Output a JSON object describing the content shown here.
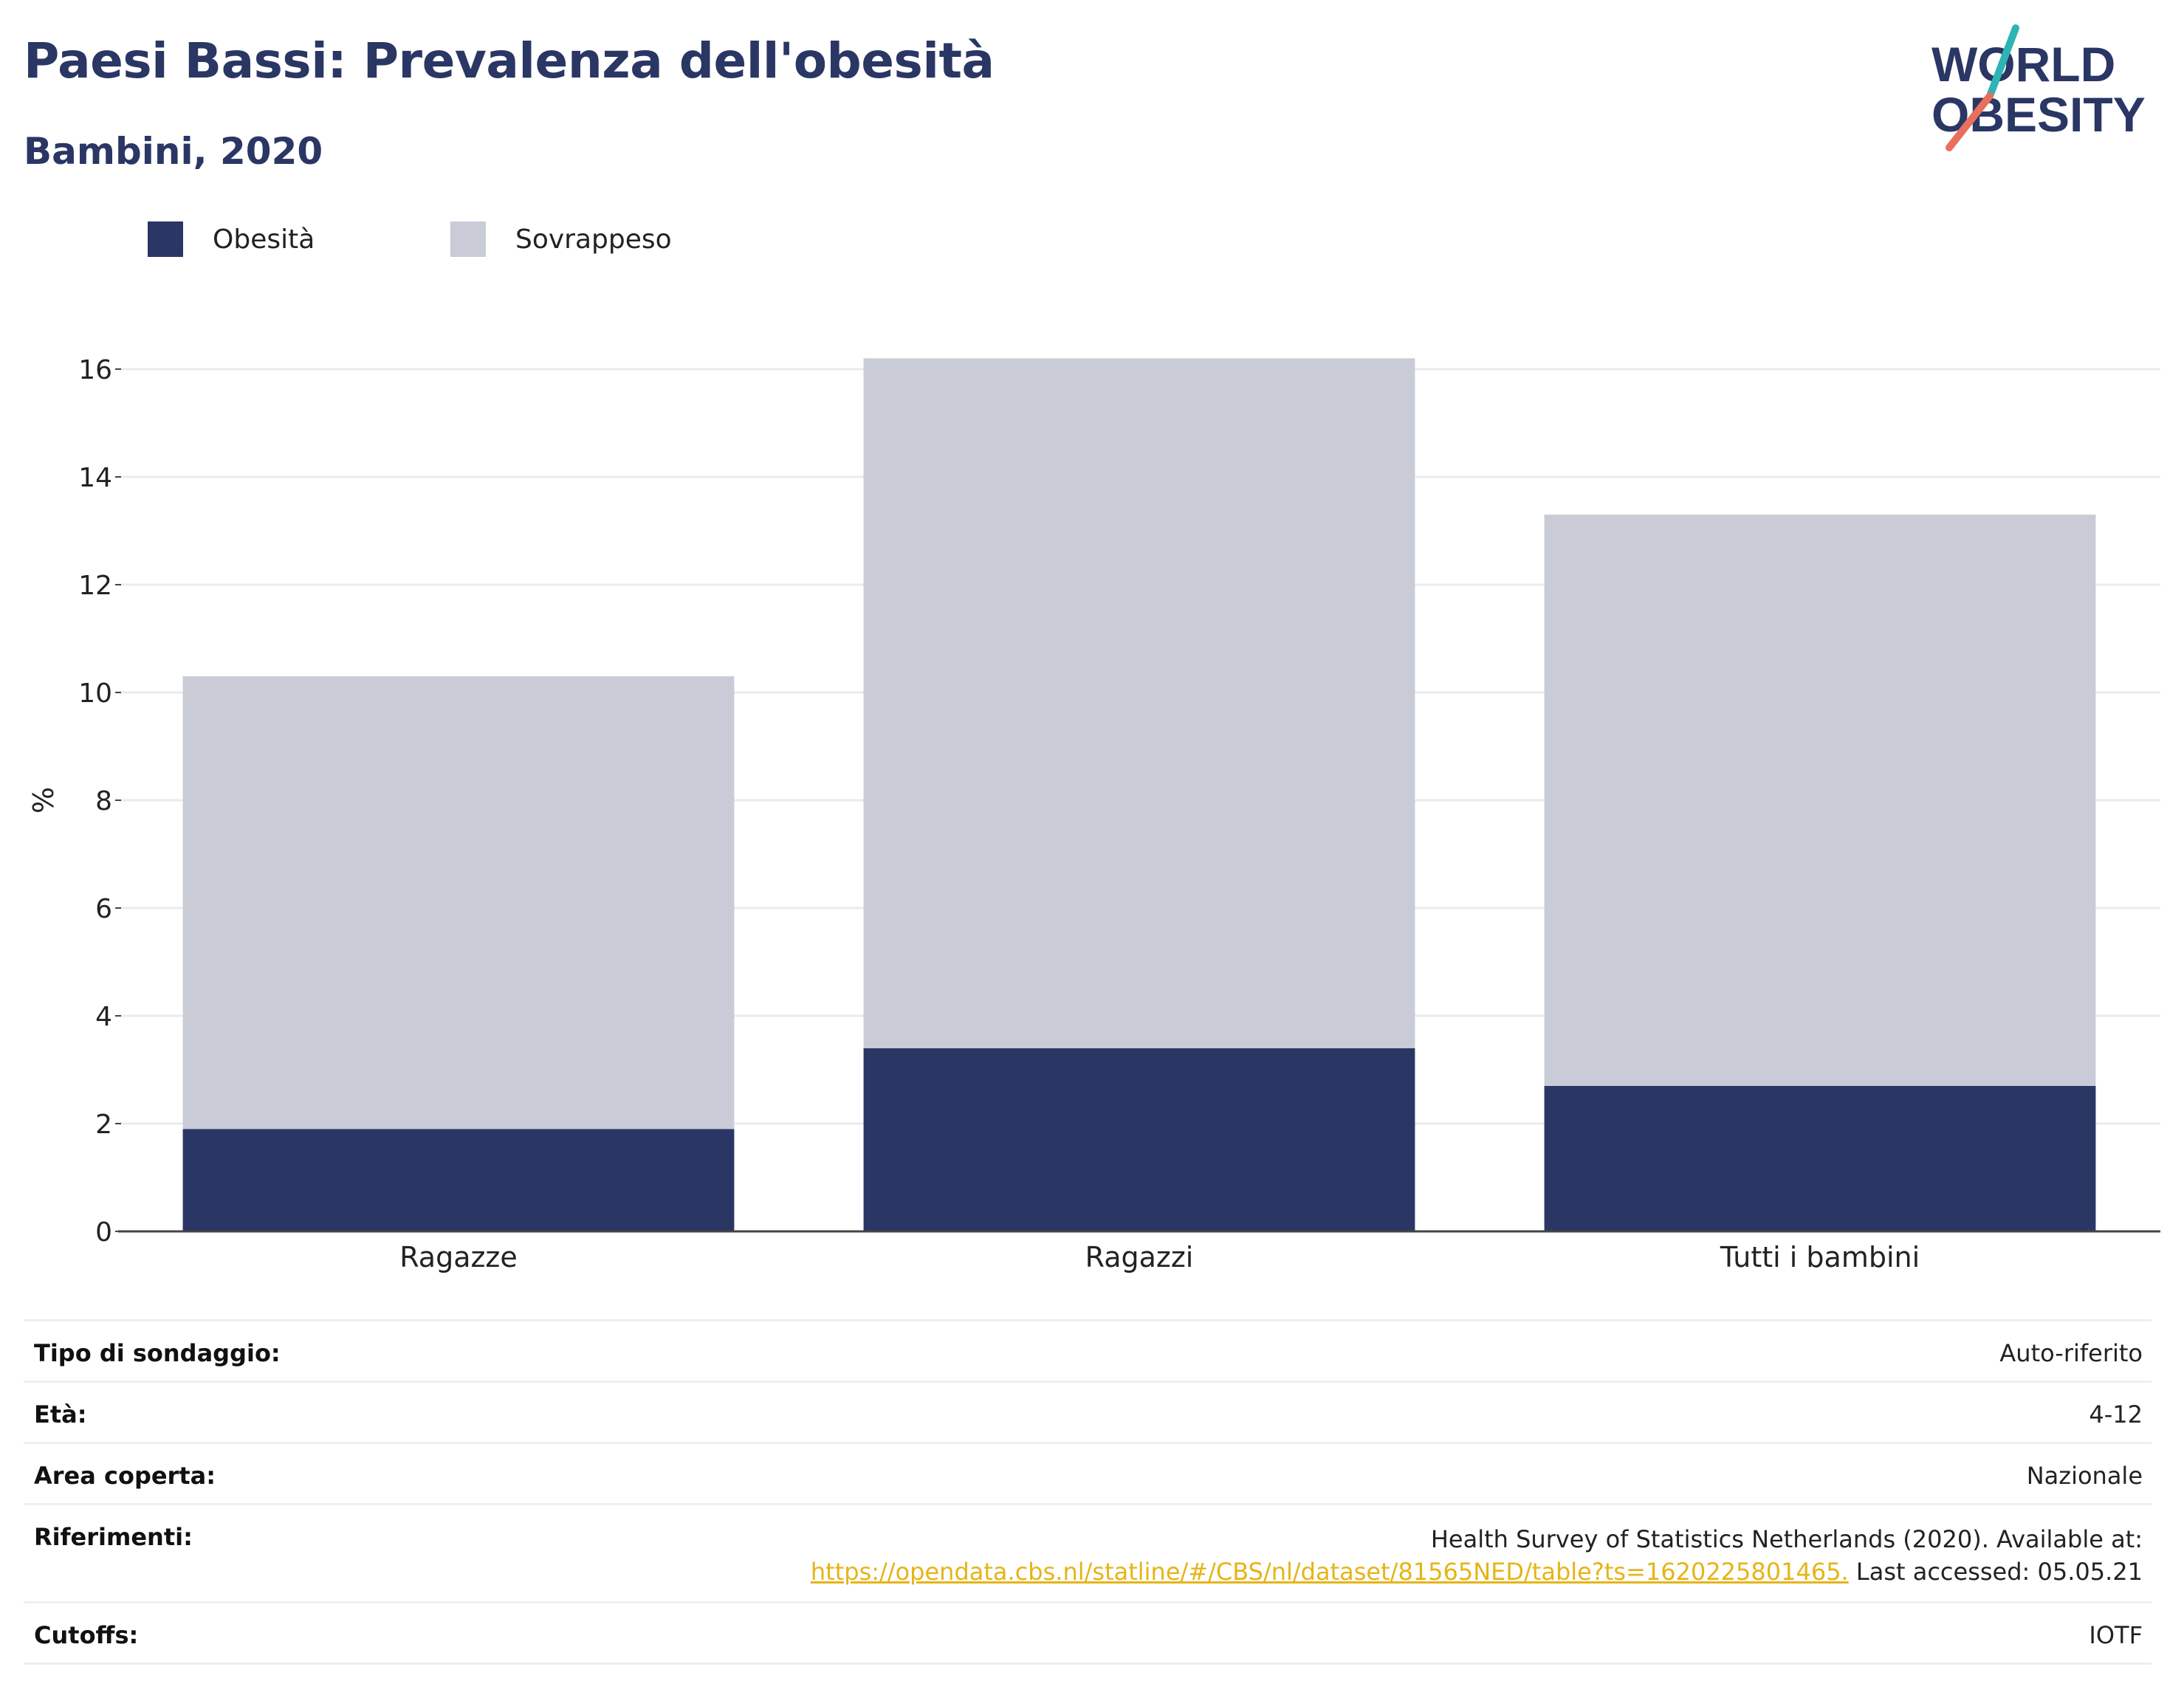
{
  "header": {
    "title": "Paesi Bassi: Prevalenza dell'obesità",
    "subtitle": "Bambini, 2020"
  },
  "logo": {
    "line1": "WORLD",
    "line2": "OBESITY"
  },
  "legend": [
    {
      "label": "Obesità",
      "color": "#2a3664"
    },
    {
      "label": "Sovrappeso",
      "color": "#c9cbd7"
    }
  ],
  "chart_data": {
    "type": "bar",
    "stacked": true,
    "title": "Paesi Bassi: Prevalenza dell'obesità",
    "subtitle": "Bambini, 2020",
    "ylabel": "%",
    "xlabel": "",
    "categories": [
      "Ragazze",
      "Ragazzi",
      "Tutti i bambini"
    ],
    "series": [
      {
        "name": "Obesità",
        "color": "#2a3664",
        "values": [
          1.9,
          3.4,
          2.7
        ]
      },
      {
        "name": "Sovrappeso",
        "color": "#c9cbd7",
        "values": [
          8.4,
          12.8,
          10.6
        ]
      }
    ],
    "ylim": [
      0,
      16
    ],
    "yticks": [
      0,
      2,
      4,
      6,
      8,
      10,
      12,
      14,
      16
    ],
    "grid": true,
    "legend_position": "top-left"
  },
  "info": {
    "survey_type": {
      "label": "Tipo di sondaggio:",
      "value": "Auto-riferito"
    },
    "age": {
      "label": "Età:",
      "value": "4-12"
    },
    "area": {
      "label": "Area coperta:",
      "value": "Nazionale"
    },
    "references": {
      "label": "Riferimenti:",
      "line1": "Health Survey of Statistics Netherlands (2020). Available at:",
      "link": "https://opendata.cbs.nl/statline/#/CBS/nl/dataset/81565NED/table?ts=1620225801465.",
      "after_link": " Last accessed: 05.05.21"
    },
    "cutoffs": {
      "label": "Cutoffs:",
      "value": "IOTF"
    }
  },
  "colors": {
    "accent": "#2a3664",
    "overweight": "#c9cbd7",
    "link": "#e6b417",
    "logo_teal": "#2db4b4",
    "logo_coral": "#e8705c"
  }
}
